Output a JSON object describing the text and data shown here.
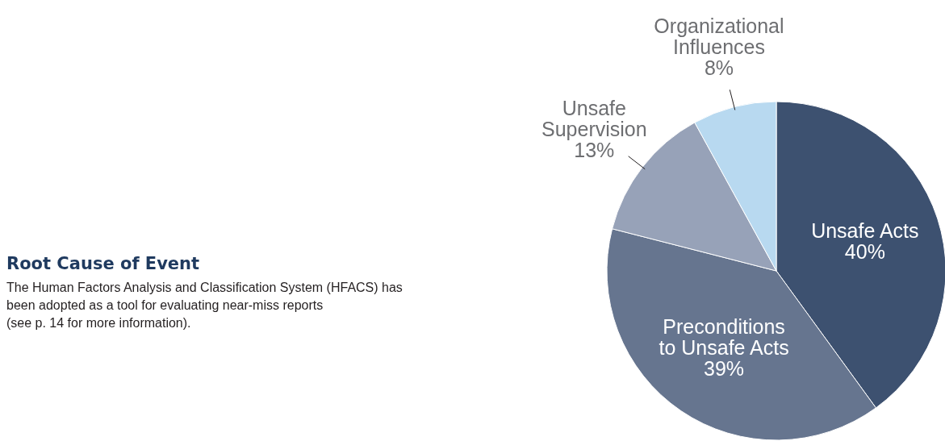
{
  "chart_data": {
    "type": "pie",
    "title": "Root Cause of Event",
    "annotations": [
      "The Human Factors Analysis and Classification System (HFACS) has\nbeen adopted as a tool for evaluating near-miss reports\n(see p. 14 for more information)."
    ],
    "categories": [
      "Unsafe Acts",
      "Preconditions\nto Unsafe Acts",
      "Unsafe\nSupervision",
      "Organizational\nInfluences"
    ],
    "values": [
      40,
      39,
      13,
      8
    ],
    "value_labels": [
      "40%",
      "39%",
      "13%",
      "8%"
    ],
    "colors": [
      "#3d5170",
      "#66758f",
      "#97a2b8",
      "#b8d9f0"
    ]
  }
}
